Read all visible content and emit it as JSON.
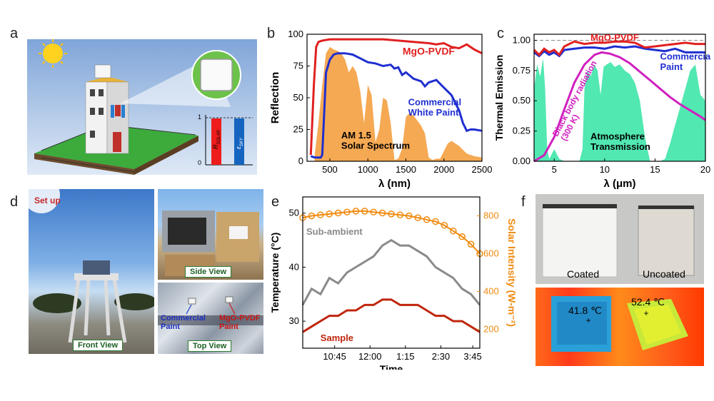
{
  "panels": {
    "a": {
      "label": "a",
      "bar_labels": {
        "r_solar": "R",
        "r_solar_sub": "SOLAR",
        "e_sky": "ε",
        "e_sky_sub": "SKY"
      },
      "ticks": [
        "1",
        "0"
      ]
    },
    "b": {
      "label": "b"
    },
    "c": {
      "label": "c"
    },
    "d": {
      "label": "d",
      "setup": "Set up",
      "front_view": "Front View",
      "side_view": "Side View",
      "top_view": "Top View",
      "commercial_paint": "Commercial\nPaint",
      "mgo_paint": "MgO-PVDF\nPaint"
    },
    "e": {
      "label": "e"
    },
    "f": {
      "label": "f",
      "coated": "Coated",
      "uncoated": "Uncoated",
      "temp_coated": "41.8 ℃",
      "temp_uncoated": "52.4 ℃"
    }
  },
  "chart_data": [
    {
      "type": "line",
      "panel": "b",
      "xlabel": "λ (nm)",
      "ylabel": "Reflection",
      "xlim": [
        200,
        2500
      ],
      "ylim": [
        0,
        100
      ],
      "xticks": [
        500,
        1000,
        1500,
        2000,
        2500
      ],
      "yticks": [
        0,
        25,
        50,
        75,
        100
      ],
      "reference_line": 100,
      "series": [
        {
          "name": "MgO-PVDF",
          "color": "#e02020",
          "x": [
            250,
            290,
            320,
            350,
            400,
            500,
            600,
            800,
            1000,
            1200,
            1400,
            1600,
            1800,
            1900,
            2000,
            2100,
            2200,
            2300,
            2400,
            2500
          ],
          "y": [
            5,
            60,
            90,
            94,
            95,
            96,
            96,
            96,
            96,
            96,
            95,
            94,
            93,
            92,
            93,
            90,
            89,
            92,
            88,
            85
          ]
        },
        {
          "name": "Commercial\nWhite Paint",
          "color": "#1f2fd0",
          "x": [
            250,
            300,
            350,
            380,
            400,
            420,
            450,
            500,
            550,
            600,
            700,
            800,
            900,
            1000,
            1100,
            1200,
            1300,
            1350,
            1400,
            1450,
            1500,
            1600,
            1700,
            1750,
            1800,
            1900,
            2000,
            2100,
            2200,
            2250,
            2300,
            2350,
            2400,
            2500
          ],
          "y": [
            4,
            3,
            3,
            3,
            5,
            30,
            70,
            80,
            84,
            85,
            85,
            84,
            81,
            78,
            77,
            75,
            76,
            73,
            74,
            68,
            70,
            65,
            63,
            59,
            62,
            64,
            58,
            52,
            40,
            30,
            24,
            25,
            25,
            24
          ]
        },
        {
          "name": "AM 1.5\nSolar Spectrum",
          "color": "#f4a040",
          "fill": true,
          "x": [
            300,
            350,
            400,
            450,
            500,
            550,
            600,
            650,
            700,
            750,
            800,
            850,
            900,
            950,
            1000,
            1050,
            1100,
            1150,
            1200,
            1250,
            1300,
            1350,
            1400,
            1450,
            1500,
            1550,
            1600,
            1650,
            1700,
            1750,
            1800,
            1850,
            1900,
            1950,
            2000,
            2050,
            2100,
            2150,
            2200,
            2300,
            2400,
            2500
          ],
          "y": [
            5,
            30,
            60,
            85,
            90,
            88,
            87,
            85,
            80,
            70,
            75,
            70,
            55,
            30,
            60,
            52,
            15,
            25,
            50,
            48,
            30,
            1,
            2,
            10,
            35,
            38,
            36,
            32,
            28,
            22,
            3,
            1,
            2,
            2,
            8,
            14,
            16,
            14,
            12,
            6,
            4,
            3
          ]
        }
      ]
    },
    {
      "type": "line",
      "panel": "c",
      "xlabel": "λ (μm)",
      "ylabel": "Thermal Emission",
      "xlim": [
        3,
        20
      ],
      "ylim": [
        0,
        1.05
      ],
      "xticks": [
        5,
        10,
        15,
        20
      ],
      "yticks": [
        0,
        0.25,
        0.5,
        0.75,
        1.0
      ],
      "reference_line": 1.0,
      "series": [
        {
          "name": "MgO-PVDF",
          "color": "#e02020",
          "x": [
            3,
            3.5,
            4,
            4.5,
            5,
            5.5,
            6,
            7,
            8,
            9,
            10,
            11,
            12,
            13,
            14,
            15,
            16,
            17,
            18,
            19,
            20
          ],
          "y": [
            0.92,
            0.88,
            0.93,
            0.9,
            0.92,
            0.88,
            0.95,
            0.99,
            0.97,
            0.98,
            0.98,
            0.99,
            0.99,
            0.98,
            0.94,
            0.95,
            0.96,
            0.97,
            0.98,
            0.97,
            0.97
          ]
        },
        {
          "name": "Commercial\nPaint",
          "color": "#1f2fd0",
          "x": [
            3,
            3.5,
            4,
            4.5,
            5,
            5.5,
            6,
            7,
            8,
            9,
            10,
            11,
            12,
            13,
            14,
            15,
            16,
            17,
            18,
            19,
            20
          ],
          "y": [
            0.9,
            0.87,
            0.91,
            0.88,
            0.9,
            0.87,
            0.92,
            0.93,
            0.94,
            0.94,
            0.93,
            0.95,
            0.94,
            0.95,
            0.93,
            0.92,
            0.91,
            0.93,
            0.9,
            0.9,
            0.9
          ]
        },
        {
          "name": "Black body radiation\n(300 K)",
          "color": "#d020c0",
          "x": [
            3,
            4,
            5,
            6,
            7,
            8,
            9,
            9.7,
            10.5,
            11.5,
            12.5,
            13.5,
            14.5,
            15.5,
            16.5,
            17.5,
            18.5,
            19.5,
            20
          ],
          "y": [
            0.0,
            0.05,
            0.2,
            0.43,
            0.65,
            0.8,
            0.88,
            0.9,
            0.89,
            0.86,
            0.81,
            0.74,
            0.67,
            0.6,
            0.53,
            0.47,
            0.42,
            0.37,
            0.34
          ]
        },
        {
          "name": "Atmosphere\nTransmission",
          "color": "#3ee6a8",
          "fill": true,
          "x": [
            3,
            3.3,
            3.6,
            3.9,
            4.1,
            4.3,
            4.5,
            4.7,
            5,
            5.5,
            6,
            6.5,
            7,
            7.5,
            7.8,
            8,
            8.3,
            8.6,
            9,
            9.3,
            9.6,
            9.9,
            10.2,
            10.6,
            11,
            11.5,
            12,
            12.5,
            13,
            13.5,
            14,
            14.5,
            15,
            15.5,
            16,
            16.5,
            17,
            17.5,
            18,
            18.5,
            19,
            19.5,
            20
          ],
          "y": [
            0.6,
            0.8,
            0.7,
            0.85,
            0.6,
            0.1,
            0.02,
            0.05,
            0.1,
            0.02,
            0.0,
            0.0,
            0.0,
            0.0,
            0.1,
            0.6,
            0.75,
            0.7,
            0.8,
            0.75,
            0.55,
            0.78,
            0.8,
            0.82,
            0.78,
            0.8,
            0.75,
            0.72,
            0.65,
            0.5,
            0.2,
            0.0,
            0.0,
            0.0,
            0.02,
            0.15,
            0.3,
            0.45,
            0.6,
            0.75,
            0.8,
            0.55,
            0.5
          ]
        }
      ]
    },
    {
      "type": "line",
      "panel": "e",
      "xlabel": "Time",
      "ylabel": "Temperature (°C)",
      "y2label": "Solar Intensity (W-m⁻²)",
      "xticks": [
        "10:45",
        "12:00",
        "1:15",
        "2:30",
        "3:45"
      ],
      "ylim": [
        25,
        53
      ],
      "yticks": [
        30,
        40,
        50
      ],
      "y2lim": [
        100,
        900
      ],
      "y2ticks": [
        200,
        400,
        600,
        800
      ],
      "series": [
        {
          "name": "Sub-ambient",
          "color": "#8a8a8a",
          "axis": "left",
          "t": [
            0,
            0.05,
            0.1,
            0.15,
            0.2,
            0.25,
            0.3,
            0.35,
            0.4,
            0.45,
            0.5,
            0.55,
            0.6,
            0.65,
            0.7,
            0.75,
            0.8,
            0.85,
            0.9,
            0.95,
            1.0
          ],
          "y": [
            33,
            36,
            35,
            38,
            37,
            39,
            40,
            41,
            42,
            44,
            45,
            44,
            44,
            43,
            42,
            40,
            39,
            38,
            36,
            35,
            33
          ]
        },
        {
          "name": "Sample",
          "color": "#c0260e",
          "axis": "left",
          "t": [
            0,
            0.05,
            0.1,
            0.15,
            0.2,
            0.25,
            0.3,
            0.35,
            0.4,
            0.45,
            0.5,
            0.55,
            0.6,
            0.65,
            0.7,
            0.75,
            0.8,
            0.85,
            0.9,
            0.95,
            1.0
          ],
          "y": [
            28,
            29,
            30,
            31,
            31,
            32,
            32,
            33,
            33,
            34,
            34,
            33,
            33,
            33,
            32,
            31,
            31,
            30,
            30,
            29,
            28
          ]
        },
        {
          "name": "Solar Intensity",
          "color": "#f08a10",
          "axis": "right",
          "t": [
            0,
            0.05,
            0.1,
            0.15,
            0.2,
            0.25,
            0.3,
            0.35,
            0.4,
            0.45,
            0.5,
            0.55,
            0.6,
            0.65,
            0.7,
            0.75,
            0.8,
            0.85,
            0.9,
            0.95,
            1.0
          ],
          "y": [
            790,
            800,
            805,
            810,
            815,
            820,
            825,
            825,
            820,
            815,
            810,
            805,
            800,
            790,
            780,
            770,
            750,
            720,
            690,
            650,
            600
          ]
        }
      ]
    }
  ]
}
